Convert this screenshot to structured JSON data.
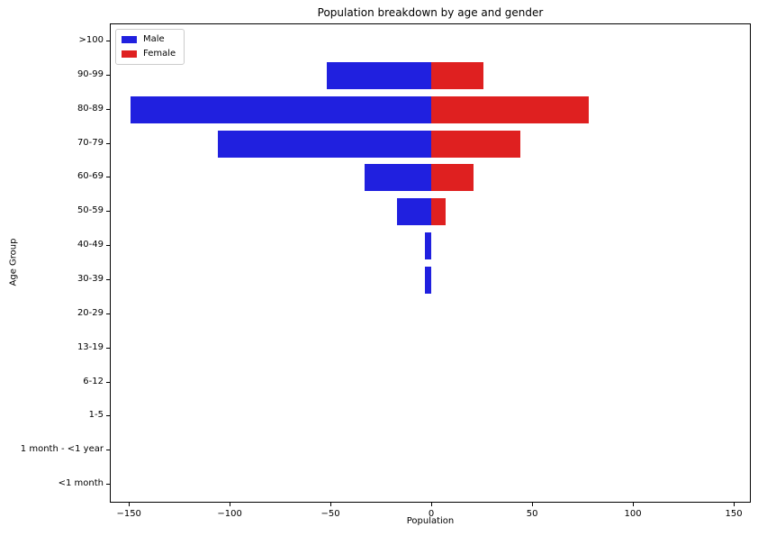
{
  "chart_data": {
    "type": "bar",
    "orientation": "horizontal",
    "title": "Population breakdown by age and gender",
    "xlabel": "Population",
    "ylabel": "Age Group",
    "categories": [
      ">100",
      "90-99",
      "80-89",
      "70-79",
      "60-69",
      "50-59",
      "40-49",
      "30-39",
      "20-29",
      "13-19",
      "6-12",
      "1-5",
      "1 month - <1 year",
      "<1 month"
    ],
    "series": [
      {
        "name": "Male",
        "color": "#2020df",
        "values": [
          0,
          -52,
          -149,
          -106,
          -33,
          -17,
          -3,
          -3,
          0,
          0,
          0,
          0,
          0,
          0
        ]
      },
      {
        "name": "Female",
        "color": "#df2020",
        "values": [
          0,
          26,
          78,
          44,
          21,
          7,
          0,
          0,
          0,
          0,
          0,
          0,
          0,
          0
        ]
      }
    ],
    "xticks": [
      -150,
      -100,
      -50,
      0,
      50,
      100,
      150
    ],
    "xlim": [
      -159,
      158
    ],
    "legend_position": "upper left",
    "grid": false,
    "background_color": "#ffffff",
    "spine_color": "#000000"
  }
}
